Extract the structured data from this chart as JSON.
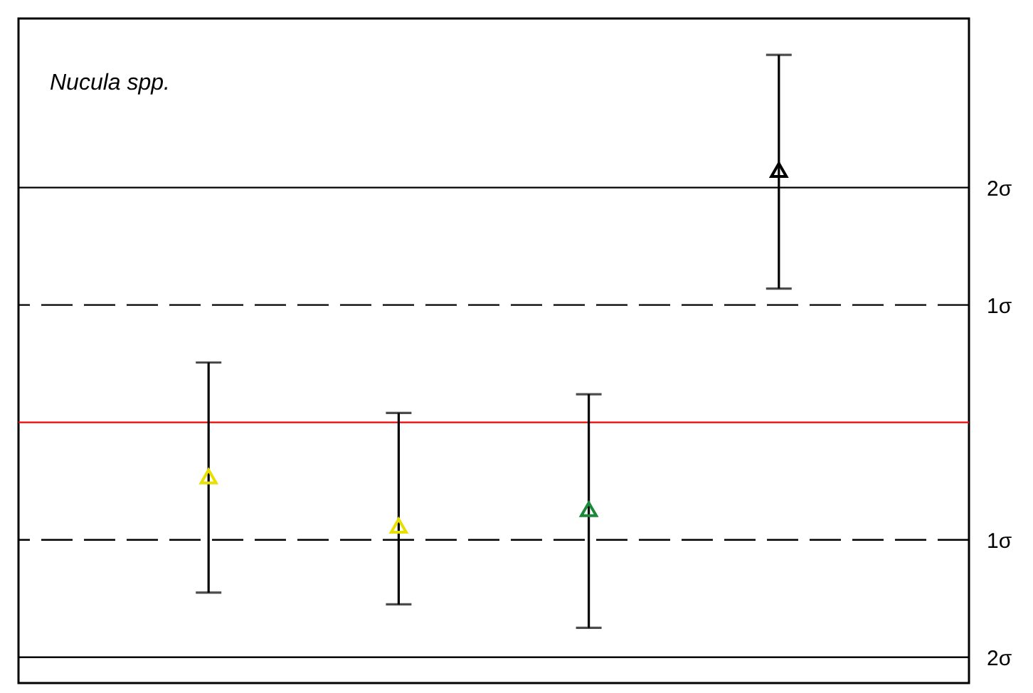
{
  "chart_data": {
    "type": "scatter",
    "categories": [
      null,
      null,
      null,
      null
    ],
    "values": [
      -0.46,
      -0.88,
      -0.74,
      2.15
    ],
    "colors": [
      "#e8e000",
      "#e8e000",
      "#1a8a3a",
      "#000000"
    ],
    "errors": [
      [
        -1.45,
        0.51
      ],
      [
        -1.55,
        0.08
      ],
      [
        -1.75,
        0.24
      ],
      [
        1.14,
        3.13
      ]
    ],
    "marker": "triangle",
    "ylim": [
      -2.22,
      3.44
    ],
    "yticks": [
      {
        "value": -2,
        "label": "2σ"
      },
      {
        "value": -1,
        "label": "1σ"
      },
      {
        "value": 1,
        "label": "1σ"
      },
      {
        "value": 2,
        "label": "2σ"
      }
    ],
    "tick_labels": "y",
    "grid": false,
    "ref_lines": [
      {
        "axis": "y",
        "value": 0,
        "color": "#ff0000",
        "line_style": "solid"
      },
      {
        "axis": "y",
        "value": 1,
        "color": "#000000",
        "line_style": "dashed"
      },
      {
        "axis": "y",
        "value": -1,
        "color": "#000000",
        "line_style": "dashed"
      },
      {
        "axis": "y",
        "value": 2,
        "color": "#000000",
        "line_style": "solid"
      },
      {
        "axis": "y",
        "value": -2,
        "color": "#000000",
        "line_style": "solid"
      }
    ],
    "annotations": [
      "Nucula spp."
    ]
  }
}
